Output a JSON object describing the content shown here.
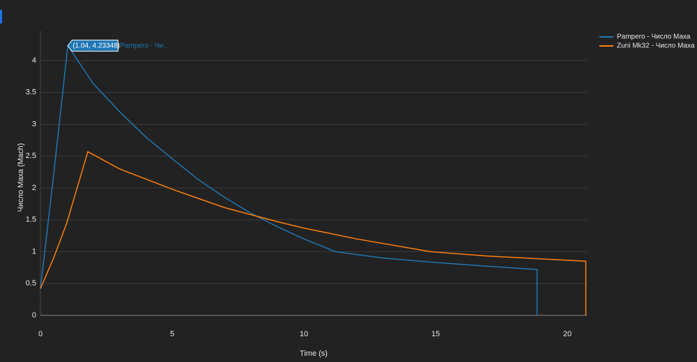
{
  "chart_data": {
    "type": "line",
    "xlabel": "Time (s)",
    "ylabel": "Число Маха (Mach)",
    "xlim": [
      0,
      20.74
    ],
    "ylim": [
      0,
      4.47
    ],
    "xticks": [
      0,
      5,
      10,
      15,
      20
    ],
    "yticks": [
      0,
      0.5,
      1,
      1.5,
      2,
      2.5,
      3,
      3.5,
      4
    ],
    "grid": true,
    "legend": "top-right",
    "series": [
      {
        "name": "Pampero - Число Маха",
        "color": "#1f77b4",
        "x": [
          0,
          0.5,
          1.04,
          2,
          3,
          4,
          5,
          6,
          7,
          8,
          9,
          10,
          11.2,
          13,
          15,
          17,
          18.85,
          18.85
        ],
        "values": [
          0.42,
          2.2,
          4.23348,
          3.64,
          3.2,
          2.8,
          2.46,
          2.13,
          1.85,
          1.6,
          1.39,
          1.2,
          1.0,
          0.9,
          0.83,
          0.77,
          0.72,
          0
        ]
      },
      {
        "name": "Zuni Mk32 - Число Маха",
        "color": "#ff7f0e",
        "x": [
          0,
          0.5,
          1,
          1.8,
          3,
          5,
          7,
          9,
          10,
          12,
          14.8,
          17,
          20.7,
          20.7
        ],
        "values": [
          0.42,
          0.9,
          1.45,
          2.57,
          2.3,
          1.98,
          1.69,
          1.47,
          1.37,
          1.2,
          1.0,
          0.93,
          0.85,
          0
        ]
      }
    ],
    "hover": {
      "label": "(1.04, 4.23348)",
      "name": "Pampero - Чи..."
    }
  }
}
